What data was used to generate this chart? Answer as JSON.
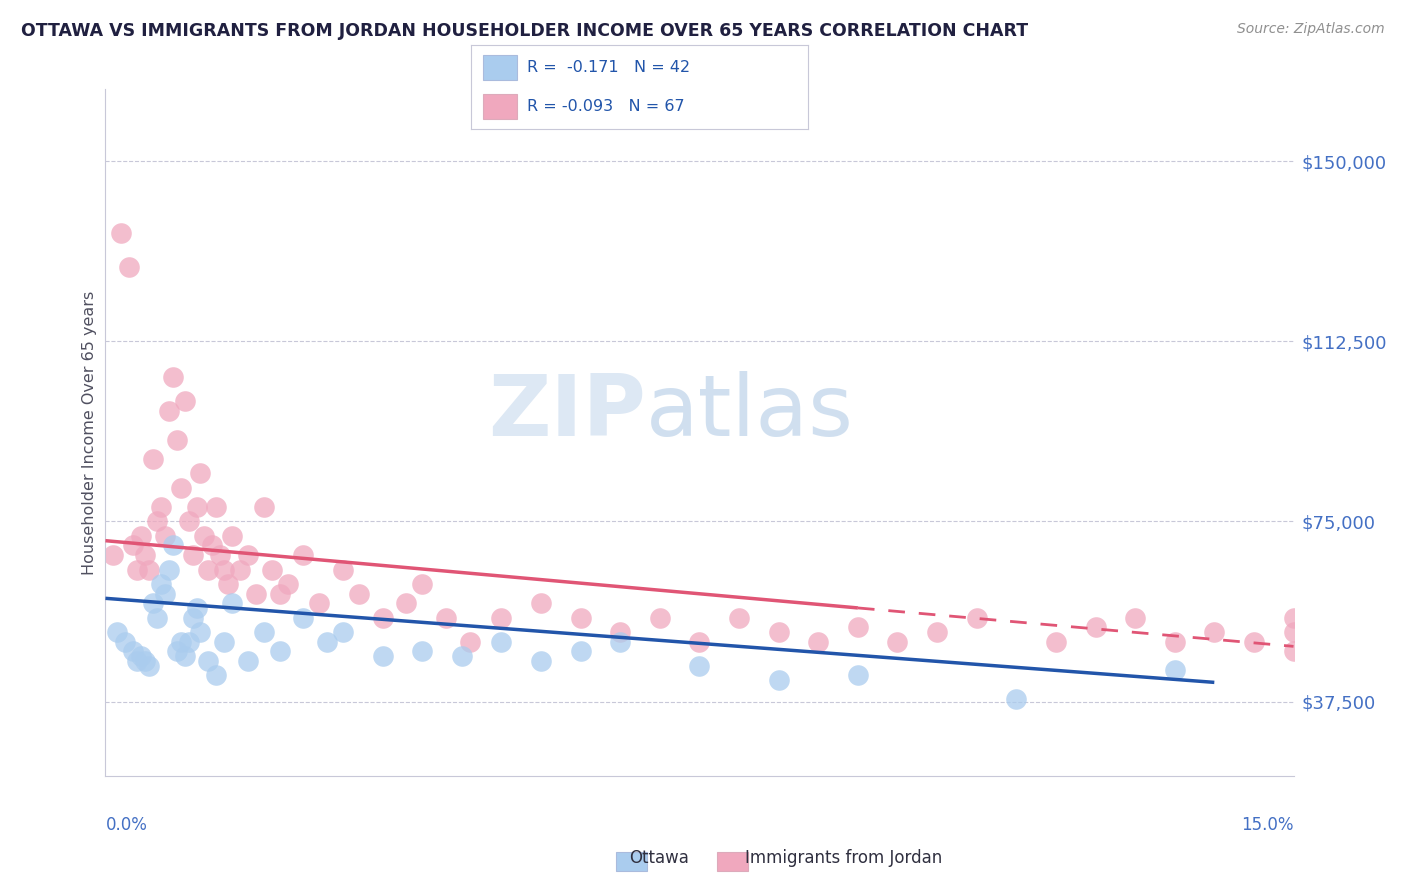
{
  "title": "OTTAWA VS IMMIGRANTS FROM JORDAN HOUSEHOLDER INCOME OVER 65 YEARS CORRELATION CHART",
  "source": "Source: ZipAtlas.com",
  "ylabel": "Householder Income Over 65 years",
  "xmin": 0.0,
  "xmax": 15.0,
  "ymin": 22000,
  "ymax": 165000,
  "yticks": [
    37500,
    75000,
    112500,
    150000
  ],
  "ytick_labels": [
    "$37,500",
    "$75,000",
    "$112,500",
    "$150,000"
  ],
  "ottawa_color": "#aaccee",
  "jordan_color": "#f0a8be",
  "ottawa_line_color": "#2255aa",
  "jordan_line_color": "#e05575",
  "background_color": "#ffffff",
  "grid_color": "#c8c8d8",
  "title_color": "#202040",
  "tick_label_color": "#4470c4",
  "ottawa_scatter_x": [
    0.15,
    0.25,
    0.35,
    0.4,
    0.45,
    0.5,
    0.55,
    0.6,
    0.65,
    0.7,
    0.75,
    0.8,
    0.85,
    0.9,
    0.95,
    1.0,
    1.05,
    1.1,
    1.15,
    1.2,
    1.3,
    1.4,
    1.5,
    1.6,
    1.8,
    2.0,
    2.2,
    2.5,
    2.8,
    3.0,
    3.5,
    4.0,
    4.5,
    5.0,
    5.5,
    6.0,
    6.5,
    7.5,
    8.5,
    9.5,
    11.5,
    13.5
  ],
  "ottawa_scatter_y": [
    52000,
    50000,
    48000,
    46000,
    47000,
    46000,
    45000,
    58000,
    55000,
    62000,
    60000,
    65000,
    70000,
    48000,
    50000,
    47000,
    50000,
    55000,
    57000,
    52000,
    46000,
    43000,
    50000,
    58000,
    46000,
    52000,
    48000,
    55000,
    50000,
    52000,
    47000,
    48000,
    47000,
    50000,
    46000,
    48000,
    50000,
    45000,
    42000,
    43000,
    38000,
    44000
  ],
  "jordan_scatter_x": [
    0.1,
    0.2,
    0.3,
    0.35,
    0.4,
    0.45,
    0.5,
    0.55,
    0.6,
    0.65,
    0.7,
    0.75,
    0.8,
    0.85,
    0.9,
    0.95,
    1.0,
    1.05,
    1.1,
    1.15,
    1.2,
    1.25,
    1.3,
    1.35,
    1.4,
    1.45,
    1.5,
    1.55,
    1.6,
    1.7,
    1.8,
    1.9,
    2.0,
    2.1,
    2.2,
    2.3,
    2.5,
    2.7,
    3.0,
    3.2,
    3.5,
    3.8,
    4.0,
    4.3,
    4.6,
    5.0,
    5.5,
    6.0,
    6.5,
    7.0,
    7.5,
    8.0,
    8.5,
    9.0,
    9.5,
    10.0,
    10.5,
    11.0,
    12.0,
    12.5,
    13.0,
    13.5,
    14.0,
    14.5,
    15.0,
    15.0,
    15.0
  ],
  "jordan_scatter_y": [
    68000,
    135000,
    128000,
    70000,
    65000,
    72000,
    68000,
    65000,
    88000,
    75000,
    78000,
    72000,
    98000,
    105000,
    92000,
    82000,
    100000,
    75000,
    68000,
    78000,
    85000,
    72000,
    65000,
    70000,
    78000,
    68000,
    65000,
    62000,
    72000,
    65000,
    68000,
    60000,
    78000,
    65000,
    60000,
    62000,
    68000,
    58000,
    65000,
    60000,
    55000,
    58000,
    62000,
    55000,
    50000,
    55000,
    58000,
    55000,
    52000,
    55000,
    50000,
    55000,
    52000,
    50000,
    53000,
    50000,
    52000,
    55000,
    50000,
    53000,
    55000,
    50000,
    52000,
    50000,
    48000,
    52000,
    55000
  ],
  "ottawa_line_x0": 0.0,
  "ottawa_line_x1": 14.0,
  "ottawa_line_y0": 59000,
  "ottawa_line_y1": 41500,
  "jordan_solid_x0": 0.0,
  "jordan_solid_x1": 9.5,
  "jordan_solid_y0": 71000,
  "jordan_solid_y1": 57000,
  "jordan_dash_x0": 9.5,
  "jordan_dash_x1": 15.0,
  "jordan_dash_y0": 57000,
  "jordan_dash_y1": 49000,
  "legend_label_1": "R =  -0.171   N = 42",
  "legend_label_2": "R = -0.093   N = 67",
  "bottom_label_1": "Ottawa",
  "bottom_label_2": "Immigrants from Jordan"
}
